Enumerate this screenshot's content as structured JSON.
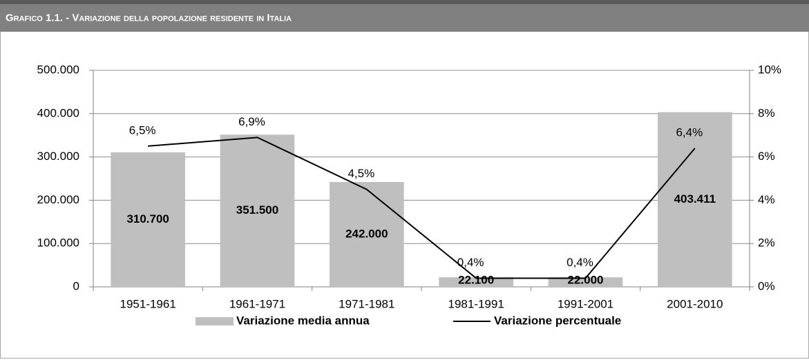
{
  "chart_data": {
    "type": "bar",
    "title": "Grafico 1.1. - Variazione della popolazione residente in Italia",
    "categories": [
      "1951-1961",
      "1961-1971",
      "1971-1981",
      "1981-1991",
      "1991-2001",
      "2001-2010"
    ],
    "series": [
      {
        "name": "Variazione media annua",
        "type": "bar",
        "color": "#bfbfbf",
        "values": [
          310700,
          351500,
          242000,
          22100,
          22000,
          403411
        ],
        "value_labels": [
          "310.700",
          "351.500",
          "242.000",
          "22.100",
          "22.000",
          "403.411"
        ]
      },
      {
        "name": "Variazione percentuale",
        "type": "line",
        "axis": "y2",
        "color": "#000000",
        "values": [
          6.5,
          6.9,
          4.5,
          0.4,
          0.4,
          6.4
        ],
        "value_labels": [
          "6,5%",
          "6,9%",
          "4,5%",
          "0,4%",
          "0,4%",
          "6,4%"
        ]
      }
    ],
    "ylim": [
      0,
      500000
    ],
    "yticks": [
      0,
      {
        "value": 100000,
        "label": "100.000"
      },
      {
        "value": 200000,
        "label": "200.000"
      },
      {
        "value": 300000,
        "label": "300.000"
      },
      {
        "value": 400000,
        "label": "400.000"
      },
      {
        "value": 500000,
        "label": "500.000"
      }
    ],
    "y2lim": [
      0,
      10
    ],
    "y2ticks": [
      {
        "value": 0,
        "label": "0%"
      },
      {
        "value": 2,
        "label": "2%"
      },
      {
        "value": 4,
        "label": "4%"
      },
      {
        "value": 6,
        "label": "6%"
      },
      {
        "value": 8,
        "label": "8%"
      },
      {
        "value": 10,
        "label": "10%"
      }
    ],
    "grid": true,
    "legend": "bottom"
  }
}
